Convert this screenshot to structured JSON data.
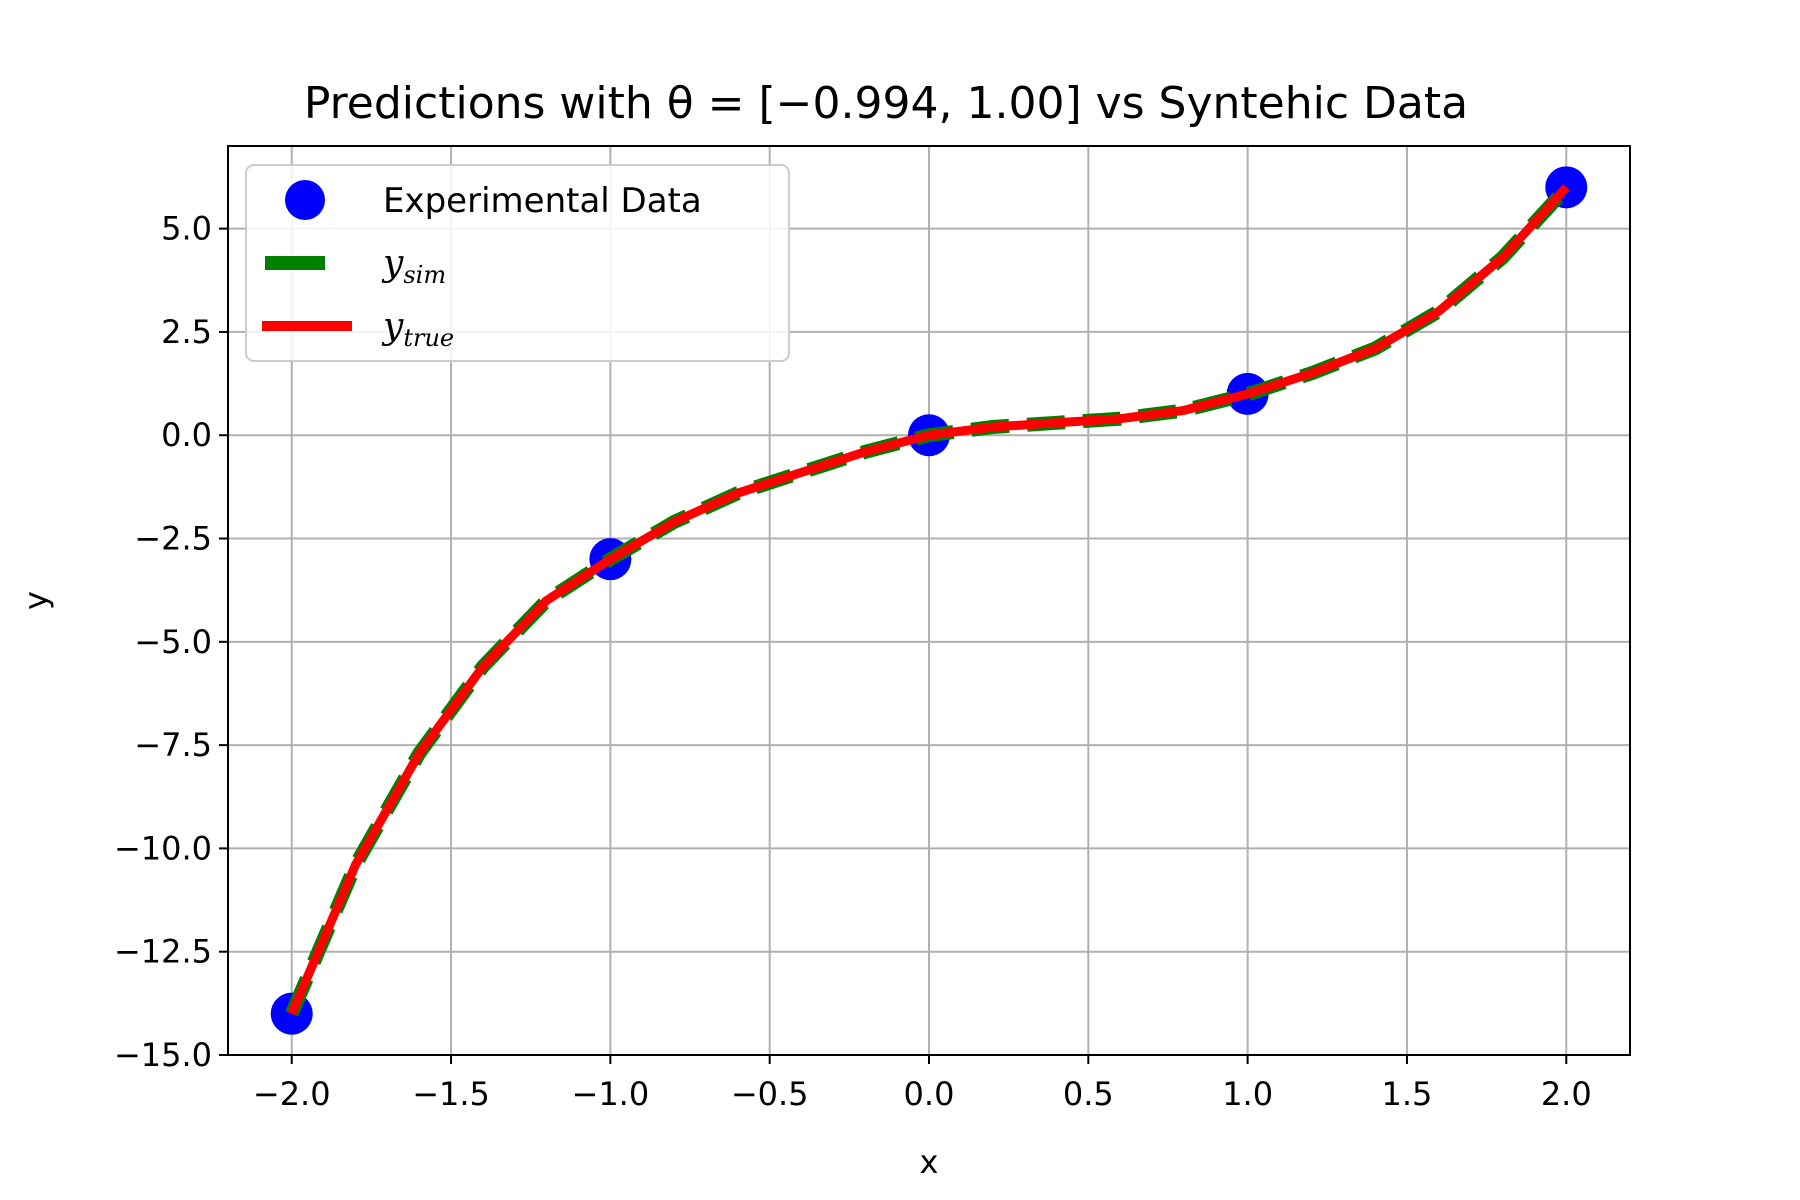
{
  "chart_data": {
    "type": "line",
    "title": "Predictions with θ = [−0.994, 1.00] vs Syntehic Data",
    "xlabel": "x",
    "ylabel": "y",
    "xlim": [
      -2.2,
      2.2
    ],
    "ylim": [
      -15.0,
      7.0
    ],
    "x_ticks": [
      -2.0,
      -1.5,
      -1.0,
      -0.5,
      0.0,
      0.5,
      1.0,
      1.5,
      2.0
    ],
    "x_tick_labels": [
      "−2.0",
      "−1.5",
      "−1.0",
      "−0.5",
      "0.0",
      "0.5",
      "1.0",
      "1.5",
      "2.0"
    ],
    "y_ticks": [
      -15.0,
      -12.5,
      -10.0,
      -7.5,
      -5.0,
      -2.5,
      0.0,
      2.5,
      5.0
    ],
    "y_tick_labels": [
      "−15.0",
      "−12.5",
      "−10.0",
      "−7.5",
      "−5.0",
      "−2.5",
      "0.0",
      "2.5",
      "5.0"
    ],
    "grid": true,
    "legend_position": "top-left",
    "series": [
      {
        "name": "Experimental Data",
        "kind": "scatter",
        "color": "#0000ff",
        "x": [
          -2.0,
          -1.0,
          0.0,
          1.0,
          2.0
        ],
        "y": [
          -14.0,
          -3.0,
          0.0,
          1.0,
          6.0
        ]
      },
      {
        "name": "y_sim",
        "kind": "dashed-line",
        "color": "#008000",
        "x": [
          -2.0,
          -1.8,
          -1.6,
          -1.4,
          -1.2,
          -1.0,
          -0.8,
          -0.6,
          -0.4,
          -0.2,
          0.0,
          0.2,
          0.4,
          0.6,
          0.8,
          1.0,
          1.2,
          1.4,
          1.6,
          1.8,
          2.0
        ],
        "y": [
          -14.0,
          -10.4,
          -7.7,
          -5.6,
          -4.0,
          -3.0,
          -2.1,
          -1.4,
          -0.9,
          -0.4,
          0.0,
          0.2,
          0.3,
          0.4,
          0.6,
          0.99,
          1.5,
          2.1,
          3.0,
          4.3,
          5.98
        ]
      },
      {
        "name": "y_true",
        "kind": "line",
        "color": "#ff0000",
        "x": [
          -2.0,
          -1.8,
          -1.6,
          -1.4,
          -1.2,
          -1.0,
          -0.8,
          -0.6,
          -0.4,
          -0.2,
          0.0,
          0.2,
          0.4,
          0.6,
          0.8,
          1.0,
          1.2,
          1.4,
          1.6,
          1.8,
          2.0
        ],
        "y": [
          -14.0,
          -10.4,
          -7.7,
          -5.6,
          -4.0,
          -3.0,
          -2.1,
          -1.4,
          -0.9,
          -0.4,
          0.0,
          0.2,
          0.3,
          0.4,
          0.6,
          1.0,
          1.5,
          2.1,
          3.0,
          4.3,
          6.0
        ]
      }
    ],
    "legend": [
      {
        "label": "Experimental Data"
      },
      {
        "label_main": "y",
        "label_sub": "sim"
      },
      {
        "label_main": "y",
        "label_sub": "true"
      }
    ]
  }
}
